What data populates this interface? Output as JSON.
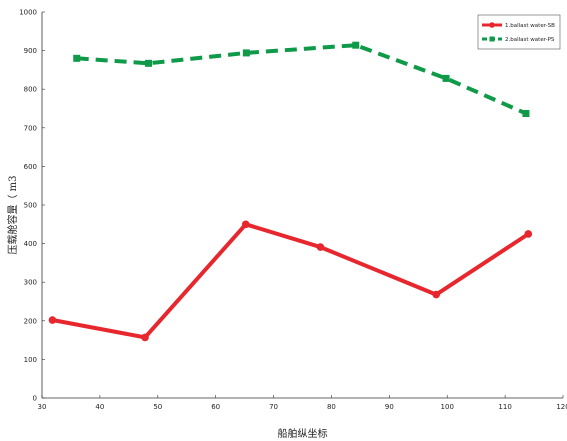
{
  "chart_data": {
    "type": "line",
    "title": "",
    "xlabel": "船舶纵坐标",
    "ylabel": "压载舱容量（ m3",
    "xlim": [
      30,
      120
    ],
    "ylim": [
      0,
      1000
    ],
    "xticks": [
      30,
      40,
      50,
      60,
      70,
      80,
      90,
      100,
      110,
      120
    ],
    "yticks": [
      0,
      100,
      200,
      300,
      400,
      500,
      600,
      700,
      800,
      900,
      1000
    ],
    "grid": false,
    "legend_position": "top-right",
    "series": [
      {
        "name": "1.ballast water-SB",
        "color": "#e8262d",
        "line_style": "solid",
        "marker": "circle",
        "points": [
          [
            31.8,
            202
          ],
          [
            47.8,
            157
          ],
          [
            65.2,
            450
          ],
          [
            78.1,
            391
          ],
          [
            98.1,
            268
          ],
          [
            114.0,
            425
          ]
        ]
      },
      {
        "name": "2.ballast water-PS",
        "color": "#0e9a48",
        "line_style": "dashed",
        "marker": "square",
        "points": [
          [
            36.0,
            880
          ],
          [
            48.4,
            867
          ],
          [
            65.3,
            894
          ],
          [
            84.2,
            914
          ],
          [
            99.8,
            828
          ],
          [
            113.6,
            737
          ]
        ]
      }
    ]
  }
}
